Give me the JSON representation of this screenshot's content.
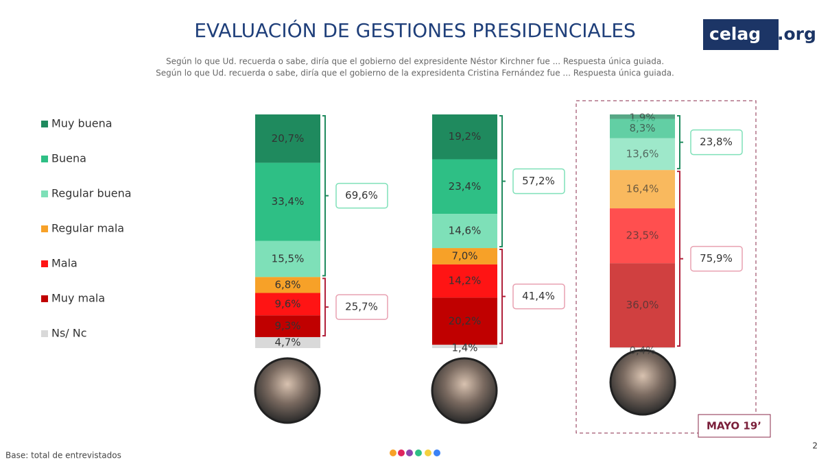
{
  "header": {
    "title": "EVALUACIÓN DE GESTIONES PRESIDENCIALES",
    "subtitle": [
      "Según lo que Ud. recuerda o sabe, diría que el gobierno del expresidente Néstor Kirchner fue ... Respuesta única guiada.",
      "Según lo que Ud. recuerda o sabe, diría que el gobierno de la expresidenta Cristina Fernández fue ... Respuesta única guiada."
    ],
    "logo": [
      "celag",
      ".org"
    ]
  },
  "chart_data": {
    "type": "bar",
    "stacked": true,
    "categories": [
      null,
      null,
      null
    ],
    "series": [
      {
        "name": "Muy buena",
        "color": "#1f8a5e",
        "values": [
          20.7,
          19.2,
          1.9
        ],
        "value_labels": [
          "20,7%",
          "19,2%",
          "1,9%"
        ]
      },
      {
        "name": "Buena",
        "color": "#2ebf85",
        "values": [
          33.4,
          23.4,
          8.3
        ],
        "value_labels": [
          "33,4%",
          "23,4%",
          "8,3%"
        ]
      },
      {
        "name": "Regular buena",
        "color": "#7ee0b8",
        "values": [
          15.5,
          14.6,
          13.6
        ],
        "value_labels": [
          "15,5%",
          "14,6%",
          "13,6%"
        ]
      },
      {
        "name": "Regular mala",
        "color": "#f7a128",
        "values": [
          6.8,
          7.0,
          16.4
        ],
        "value_labels": [
          "6,8%",
          "7,0%",
          "16,4%"
        ]
      },
      {
        "name": "Mala",
        "color": "#ff1414",
        "values": [
          9.6,
          14.2,
          23.5
        ],
        "value_labels": [
          "9,6%",
          "14,2%",
          "23,5%"
        ]
      },
      {
        "name": "Muy mala",
        "color": "#c00000",
        "values": [
          9.3,
          20.2,
          36.0
        ],
        "value_labels": [
          "9,3%",
          "20,2%",
          "36,0%"
        ]
      },
      {
        "name": "Ns/ Nc",
        "color": "#d9d9d9",
        "values": [
          4.7,
          1.4,
          0.4
        ],
        "value_labels": [
          "4,7%",
          "1,4%",
          "0,4%"
        ]
      }
    ],
    "brackets": [
      {
        "values": [
          69.6,
          25.7
        ],
        "value_labels": [
          "69,6%",
          "25,7%"
        ]
      },
      {
        "values": [
          57.2,
          41.4
        ],
        "value_labels": [
          "57,2%",
          "41,4%"
        ]
      },
      {
        "values": [
          23.8,
          75.9
        ],
        "value_labels": [
          "23,8%",
          "75,9%"
        ]
      }
    ],
    "annotation": "MAYO 19’"
  },
  "footer": {
    "note": "Base: total de entrevistados",
    "page": "2"
  }
}
